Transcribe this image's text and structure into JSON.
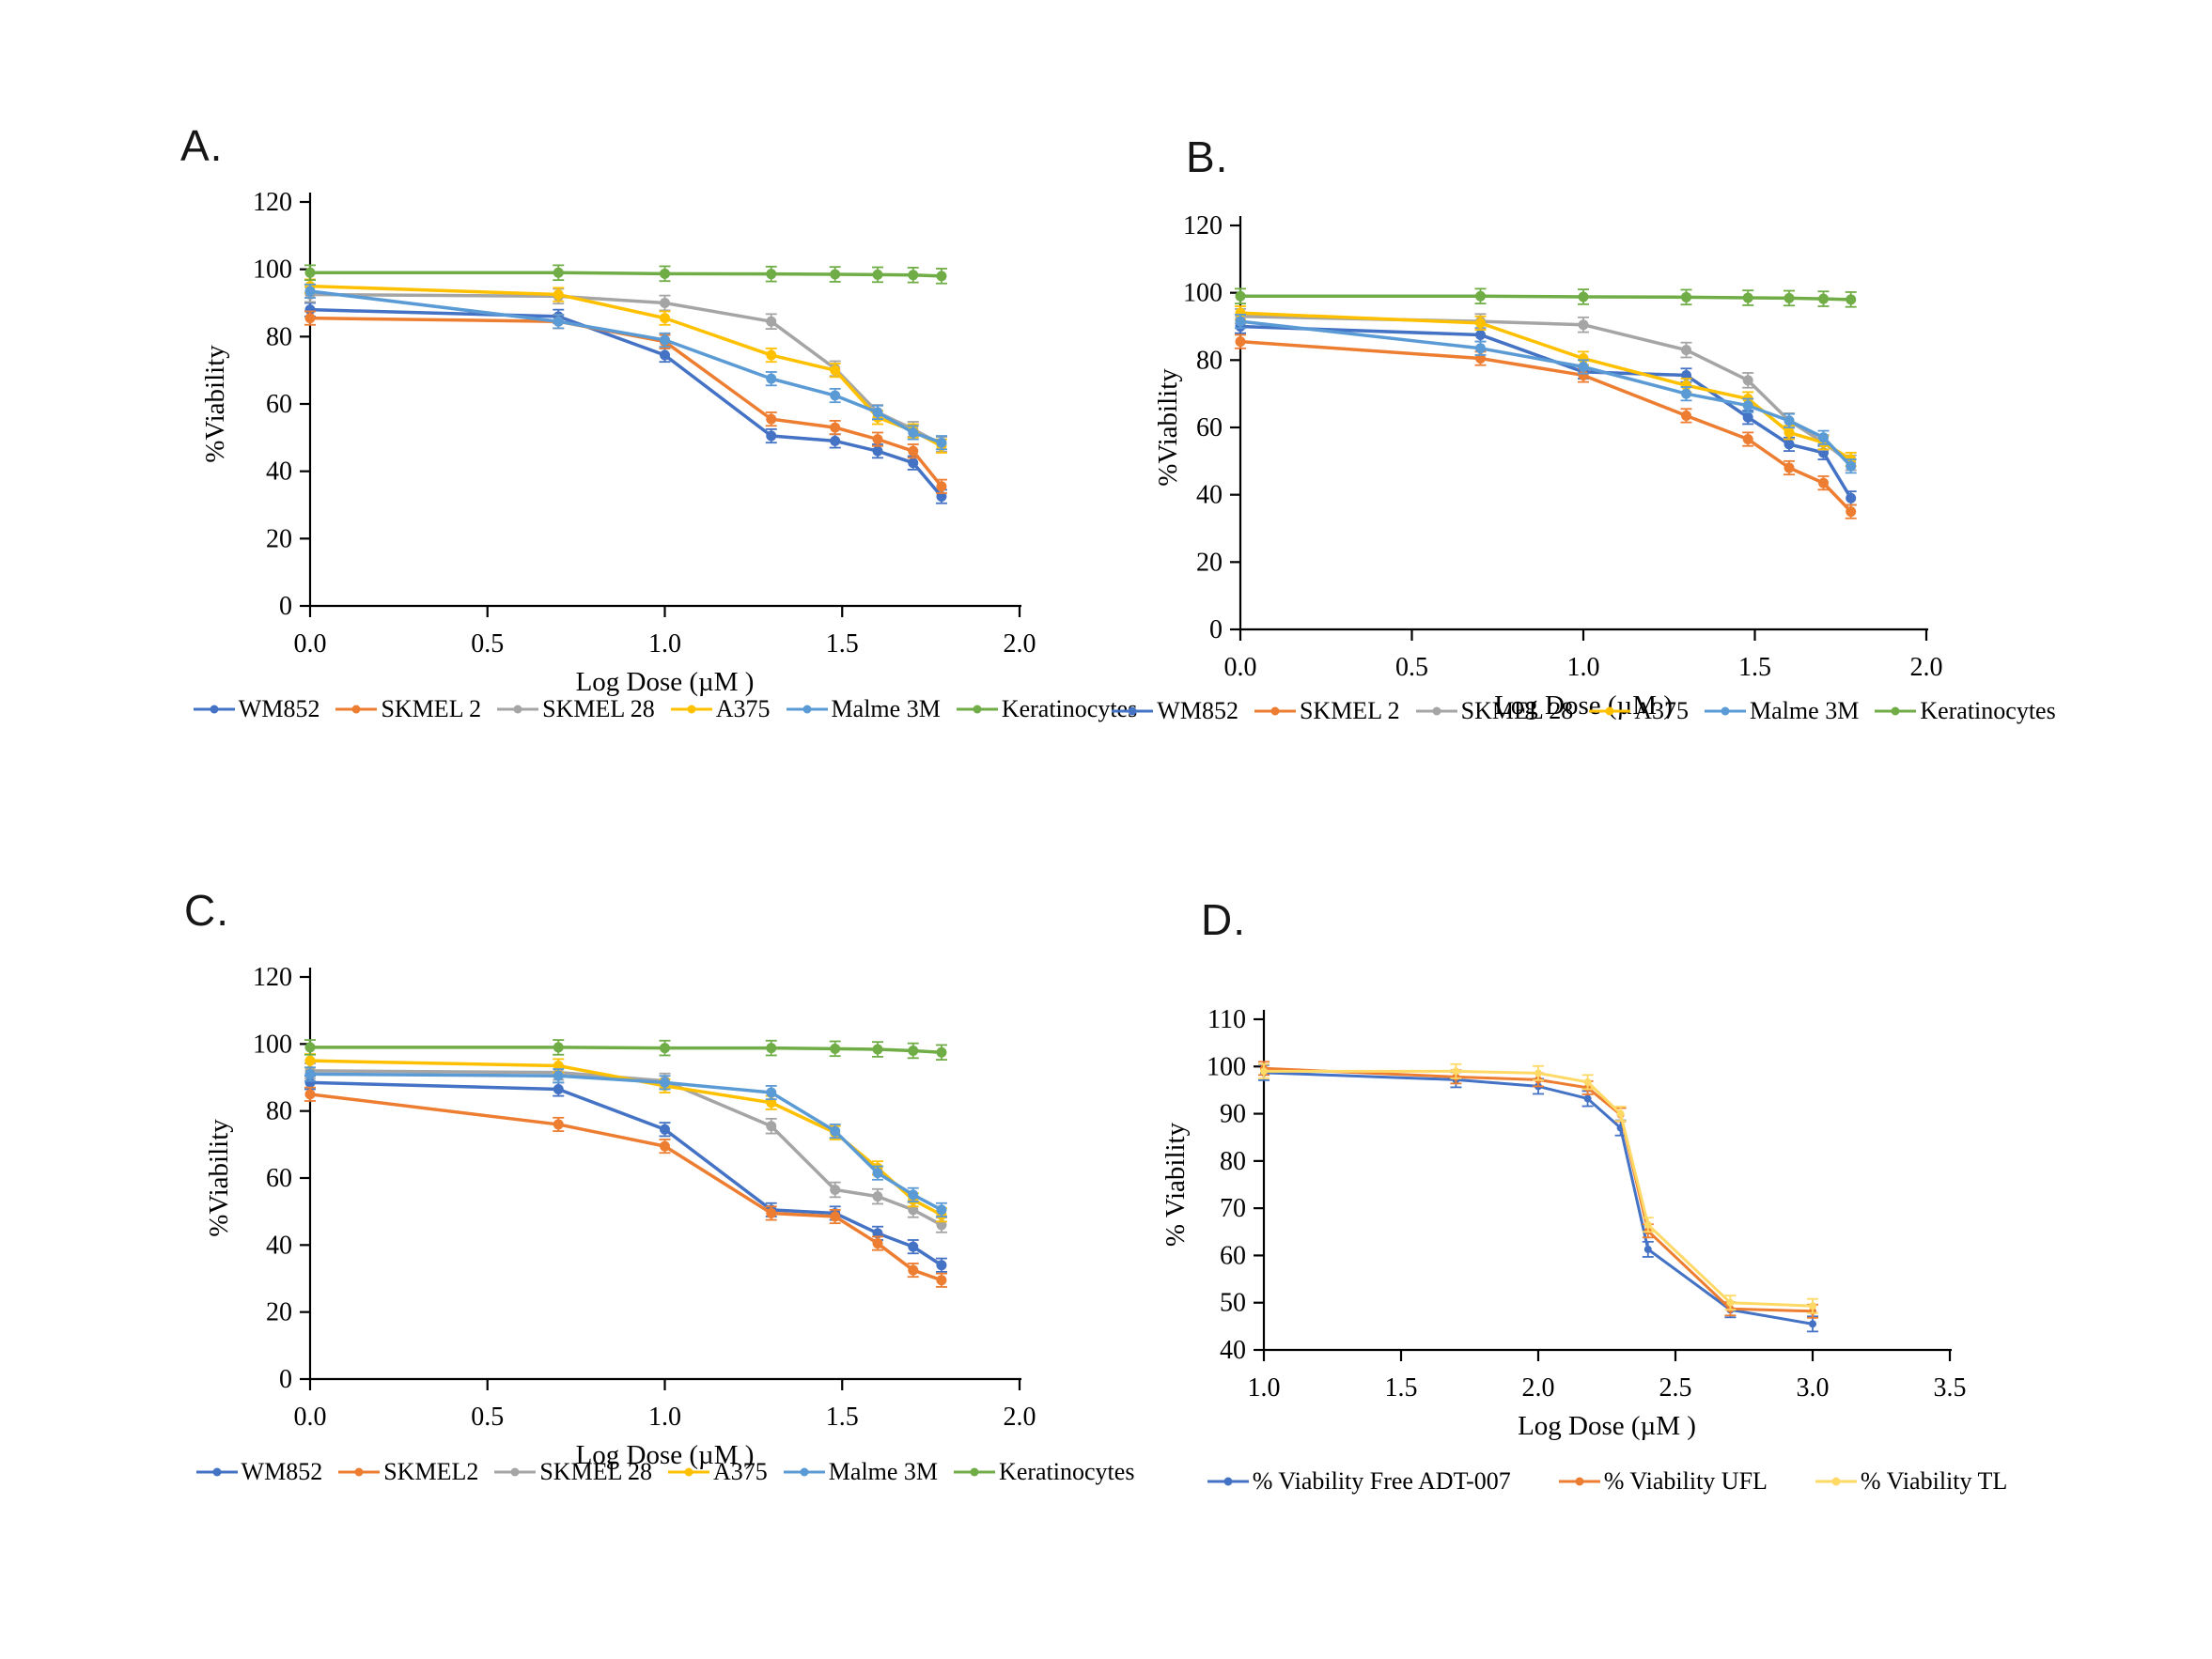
{
  "figure": {
    "background": "#ffffff",
    "panel_letters": [
      "A.",
      "B.",
      "C.",
      "D."
    ]
  },
  "chart_data": [
    {
      "type": "line",
      "panel": "A.",
      "x_label": "Log Dose (µM )",
      "y_label": "%Viability",
      "x_min": 0,
      "x_max": 2,
      "y_min": 0,
      "y_max": 120,
      "grid": false,
      "legend_position": "bottom",
      "x_tick_values": [
        0,
        0.5,
        1,
        1.5,
        2
      ],
      "x_tick_labels": [
        "0.0",
        "0.5",
        "1.0",
        "1.5",
        "2.0"
      ],
      "y_tick_values": [
        0,
        20,
        40,
        60,
        80,
        100,
        120
      ],
      "y_tick_labels": [
        "0",
        "20",
        "40",
        "60",
        "80",
        "100",
        "120"
      ],
      "x": [
        0,
        0.7,
        1.0,
        1.3,
        1.48,
        1.6,
        1.7,
        1.78
      ],
      "series": [
        {
          "name": "WM852",
          "color": "#4472C4",
          "err": 2,
          "values": [
            88,
            86,
            74.5,
            50.5,
            49,
            46,
            42.5,
            32.5
          ]
        },
        {
          "name": "SKMEL 2",
          "color": "#ED7D31",
          "err": 2,
          "values": [
            85.5,
            84.5,
            78.5,
            55.5,
            53,
            49.5,
            46,
            35.5
          ]
        },
        {
          "name": "SKMEL 28",
          "color": "#A5A5A5",
          "err": 2.2,
          "values": [
            92.5,
            92,
            90,
            84.5,
            70.5,
            57.5,
            52.5,
            48
          ]
        },
        {
          "name": "A375",
          "color": "#FFC000",
          "err": 2,
          "values": [
            95,
            92.5,
            85.5,
            74.5,
            70,
            56,
            52,
            47.5
          ]
        },
        {
          "name": "Malme 3M",
          "color": "#5B9BD5",
          "err": 2,
          "values": [
            93.5,
            84.5,
            79,
            67.5,
            62.5,
            57.5,
            51.5,
            48.5
          ]
        },
        {
          "name": "Keratinocytes",
          "color": "#70AD47",
          "err": 2.2,
          "values": [
            99,
            99,
            98.7,
            98.6,
            98.5,
            98.4,
            98.3,
            98
          ]
        }
      ]
    },
    {
      "type": "line",
      "panel": "B.",
      "x_label": "Log Dose (µM )",
      "y_label": "%Viability",
      "x_min": 0,
      "x_max": 2,
      "y_min": 0,
      "y_max": 120,
      "grid": false,
      "legend_position": "bottom",
      "x_tick_values": [
        0,
        0.5,
        1,
        1.5,
        2
      ],
      "x_tick_labels": [
        "0.0",
        "0.5",
        "1.0",
        "1.5",
        "2.0"
      ],
      "y_tick_values": [
        0,
        20,
        40,
        60,
        80,
        100,
        120
      ],
      "y_tick_labels": [
        "0",
        "20",
        "40",
        "60",
        "80",
        "100",
        "120"
      ],
      "x": [
        0,
        0.7,
        1.0,
        1.3,
        1.48,
        1.6,
        1.7,
        1.78
      ],
      "series": [
        {
          "name": "WM852",
          "color": "#4472C4",
          "err": 2,
          "values": [
            90,
            87.5,
            76.5,
            75.5,
            63,
            55,
            52.5,
            39
          ]
        },
        {
          "name": "SKMEL 2",
          "color": "#ED7D31",
          "err": 2,
          "values": [
            85.5,
            80.5,
            75.5,
            63.5,
            56.5,
            48,
            43.5,
            35
          ]
        },
        {
          "name": "SKMEL 28",
          "color": "#A5A5A5",
          "err": 2.2,
          "values": [
            93,
            91.5,
            90.5,
            83,
            74,
            62,
            55.5,
            49.5
          ]
        },
        {
          "name": "A375",
          "color": "#FFC000",
          "err": 2,
          "values": [
            94,
            91,
            80.5,
            72.5,
            68.5,
            58.5,
            55.5,
            50.5
          ]
        },
        {
          "name": "Malme 3M",
          "color": "#5B9BD5",
          "err": 2,
          "values": [
            91.5,
            83.5,
            78,
            70,
            66.5,
            62,
            57,
            48.5
          ]
        },
        {
          "name": "Keratinocytes",
          "color": "#70AD47",
          "err": 2.2,
          "values": [
            99,
            99,
            98.8,
            98.7,
            98.5,
            98.4,
            98.2,
            98
          ]
        }
      ]
    },
    {
      "type": "line",
      "panel": "C.",
      "x_label": "Log Dose (µM )",
      "y_label": "%Viability",
      "x_min": 0,
      "x_max": 2,
      "y_min": 0,
      "y_max": 120,
      "grid": false,
      "legend_position": "bottom",
      "x_tick_values": [
        0,
        0.5,
        1,
        1.5,
        2
      ],
      "x_tick_labels": [
        "0.0",
        "0.5",
        "1.0",
        "1.5",
        "2.0"
      ],
      "y_tick_values": [
        0,
        20,
        40,
        60,
        80,
        100,
        120
      ],
      "y_tick_labels": [
        "0",
        "20",
        "40",
        "60",
        "80",
        "100",
        "120"
      ],
      "x": [
        0,
        0.7,
        1.0,
        1.3,
        1.48,
        1.6,
        1.7,
        1.78
      ],
      "series": [
        {
          "name": "WM852",
          "color": "#4472C4",
          "err": 2,
          "values": [
            88.5,
            86.5,
            74.5,
            50.5,
            49.5,
            43.5,
            39.5,
            34
          ]
        },
        {
          "name": "SKMEL2",
          "color": "#ED7D31",
          "err": 2,
          "values": [
            85,
            76,
            69.5,
            49.5,
            48.5,
            40.5,
            32.5,
            29.5
          ]
        },
        {
          "name": "SKMEL 28",
          "color": "#A5A5A5",
          "err": 2.2,
          "values": [
            92,
            91.5,
            89,
            75.5,
            56.5,
            54.5,
            50.5,
            46
          ]
        },
        {
          "name": "A375",
          "color": "#FFC000",
          "err": 2,
          "values": [
            95,
            93.5,
            87.5,
            82.5,
            73.5,
            63,
            53.5,
            49
          ]
        },
        {
          "name": "Malme 3M",
          "color": "#5B9BD5",
          "err": 2,
          "values": [
            91,
            90.5,
            88.5,
            85.5,
            74,
            61.5,
            55,
            50.5
          ]
        },
        {
          "name": "Keratinocytes",
          "color": "#70AD47",
          "err": 2.2,
          "values": [
            99,
            99,
            98.8,
            98.8,
            98.6,
            98.4,
            98,
            97.5
          ]
        }
      ]
    },
    {
      "type": "line",
      "panel": "D.",
      "x_label": "Log Dose (µM )",
      "y_label": "% Viability",
      "x_min": 1,
      "x_max": 3.5,
      "y_min": 40,
      "y_max": 110,
      "grid": false,
      "legend_position": "bottom",
      "x_tick_values": [
        1,
        1.5,
        2,
        2.5,
        3,
        3.5
      ],
      "x_tick_labels": [
        "1.0",
        "1.5",
        "2.0",
        "2.5",
        "3.0",
        "3.5"
      ],
      "y_tick_values": [
        40,
        50,
        60,
        70,
        80,
        90,
        100,
        110
      ],
      "y_tick_labels": [
        "40",
        "50",
        "60",
        "70",
        "80",
        "90",
        "100",
        "110"
      ],
      "x": [
        1.0,
        1.7,
        2.0,
        2.18,
        2.3,
        2.4,
        2.7,
        3.0
      ],
      "series": [
        {
          "name": "% Viability Free ADT-007",
          "color": "#4472C4",
          "err": 1.6,
          "values": [
            98.7,
            97.2,
            95.8,
            93.2,
            87,
            61.3,
            48.5,
            45.5
          ]
        },
        {
          "name": "% Viability UFL",
          "color": "#ED7D31",
          "err": 1.4,
          "values": [
            99.6,
            97.8,
            97.2,
            95.5,
            89.8,
            65.2,
            48.7,
            48.2
          ]
        },
        {
          "name": "% Viability TL",
          "color": "#FFD966",
          "err": 1.5,
          "values": [
            99,
            99,
            98.6,
            96.7,
            90,
            66.5,
            50,
            49.3
          ]
        }
      ]
    }
  ]
}
